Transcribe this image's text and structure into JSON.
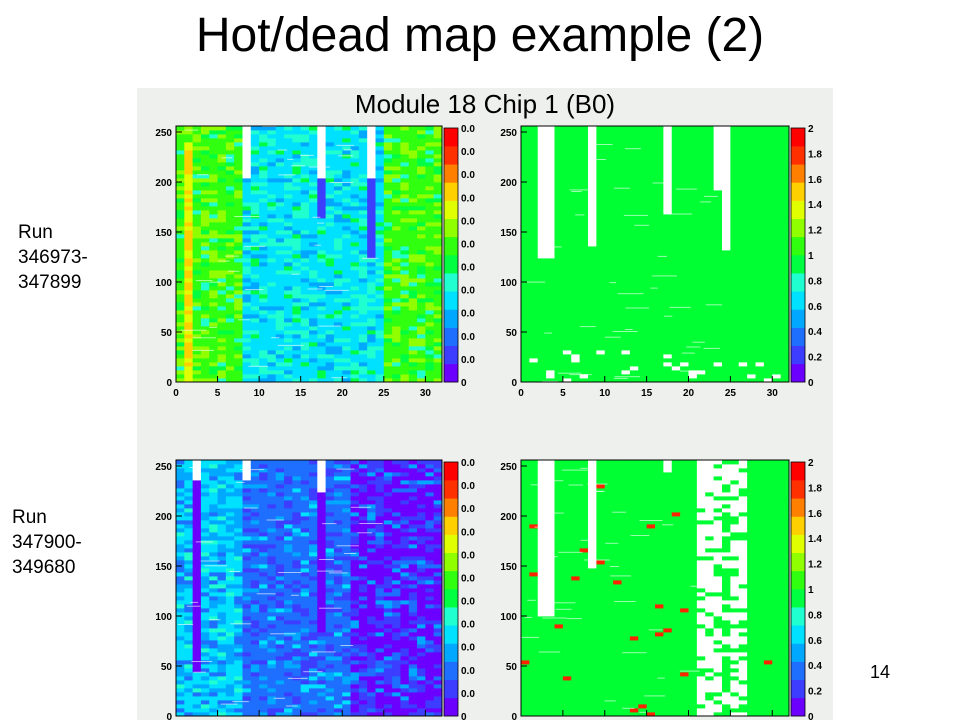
{
  "slide": {
    "title": "Hot/dead map example (2)",
    "number": "14"
  },
  "panel": {
    "title": "Module 18 Chip 1 (B0)"
  },
  "runs": [
    {
      "line1": "Run",
      "line2": "346973-",
      "line3": "347899"
    },
    {
      "line1": "Run",
      "line2": "347900-",
      "line3": "349680"
    }
  ],
  "axes": {
    "x_ticks": [
      "0",
      "5",
      "10",
      "15",
      "20",
      "25",
      "30"
    ],
    "y_ticks": [
      "0",
      "50",
      "100",
      "150",
      "200",
      "250"
    ],
    "left_colorbar_labels": [
      "0",
      "0.0",
      "0.0",
      "0.0",
      "0.0",
      "0.0",
      "0.0",
      "0.0",
      "0.0",
      "0.0",
      "0.0",
      "0.0"
    ],
    "right_colorbar_labels": [
      "0",
      "0.2",
      "0.4",
      "0.6",
      "0.8",
      "1",
      "1.2",
      "1.4",
      "1.6",
      "1.8",
      "2"
    ]
  },
  "colors": {
    "palette": [
      "#6b00ff",
      "#3d3dff",
      "#1f6fff",
      "#00a8ff",
      "#00e0ff",
      "#20ffd0",
      "#00ff40",
      "#30ff10",
      "#90ff00",
      "#e0ff00",
      "#ffd000",
      "#ff8000",
      "#ff3000",
      "#ff0000"
    ],
    "good": "#00ff33",
    "dead": "#ffffff",
    "hot": "#ff2200"
  },
  "chart_data": [
    {
      "type": "heatmap",
      "name": "occupancy-run1",
      "x_range": [
        0,
        32
      ],
      "y_range": [
        0,
        256
      ],
      "dead_columns": [
        8,
        17,
        23
      ],
      "dominant_levels": {
        "cols_0_7": "green",
        "cols_8_23": "cyan",
        "cols_24_31": "green"
      }
    },
    {
      "type": "heatmap",
      "name": "status-run1",
      "x_range": [
        0,
        32
      ],
      "y_range": [
        0,
        256
      ],
      "z_range": [
        0,
        2
      ],
      "dead_columns": [
        2,
        3,
        8,
        17,
        23,
        24
      ]
    },
    {
      "type": "heatmap",
      "name": "occupancy-run2",
      "x_range": [
        0,
        32
      ],
      "y_range": [
        0,
        256
      ],
      "dominant_levels": {
        "cols_0_7": "cyan",
        "cols_8_20": "blue",
        "cols_21_31": "violet"
      }
    },
    {
      "type": "heatmap",
      "name": "status-run2",
      "x_range": [
        0,
        32
      ],
      "y_range": [
        0,
        256
      ],
      "z_range": [
        0,
        2
      ],
      "dead_columns": [
        2,
        3,
        8,
        17,
        21,
        22,
        23,
        24,
        25,
        26
      ]
    }
  ]
}
